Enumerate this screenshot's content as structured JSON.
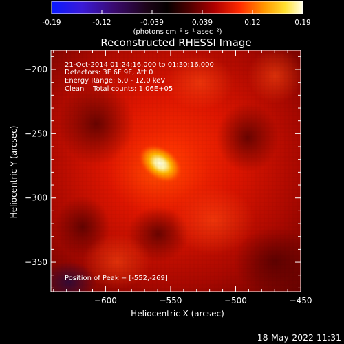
{
  "colorbar": {
    "ticks": [
      "-0.19",
      "-0.12",
      "-0.039",
      "0.039",
      "0.12",
      "0.19"
    ],
    "unit_label": "(photons cm⁻² s⁻¹ asec⁻²)",
    "range": [
      -0.19,
      0.19
    ],
    "colormap": "red-temperature (blue→purple→red→orange→yellow→white)"
  },
  "title": "Reconstructed RHESSI Image",
  "info": {
    "line1": "21-Oct-2014 01:24:16.000 to 01:30:16.000",
    "line2": "Detectors: 3F 6F 9F, Att 0",
    "line3": "Energy Range: 6.0 - 12.0 keV",
    "line4": "Clean    Total counts: 1.06E+05"
  },
  "peak_label": "Position of Peak = [-552,-269]",
  "footer_date": "18-May-2022 11:31",
  "chart_data": {
    "type": "heatmap",
    "title": "Reconstructed RHESSI Image",
    "xlabel": "Heliocentric X (arcsec)",
    "ylabel": "Heliocentric Y (arcsec)",
    "xlim": [
      -642,
      -450
    ],
    "ylim": [
      -373,
      -185
    ],
    "x_ticks": [
      -600,
      -550,
      -500,
      -450
    ],
    "y_ticks": [
      -200,
      -250,
      -300,
      -350
    ],
    "x_tick_labels": [
      "−600",
      "−550",
      "−500",
      "−450"
    ],
    "y_tick_labels": [
      "−200",
      "−250",
      "−300",
      "−350"
    ],
    "peak": {
      "x": -552,
      "y": -269
    },
    "value_unit": "photons cm-2 s-1 asec-2"
  }
}
